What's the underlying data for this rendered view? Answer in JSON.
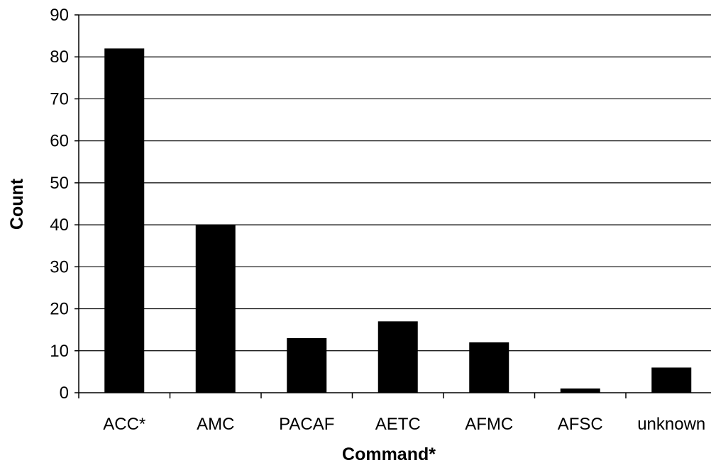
{
  "chart_data": {
    "type": "bar",
    "title": "",
    "xlabel": "Command*",
    "ylabel": "Count",
    "categories": [
      "ACC*",
      "AMC",
      "PACAF",
      "AETC",
      "AFMC",
      "AFSC",
      "unknown"
    ],
    "values": [
      82,
      40,
      13,
      17,
      12,
      1,
      6
    ],
    "ylim": [
      0,
      90
    ],
    "yticks": [
      "0",
      "10",
      "20",
      "30",
      "40",
      "50",
      "60",
      "70",
      "80",
      "90"
    ],
    "grid": true,
    "legend": "none",
    "bar_color": "#000000",
    "grid_color": "#000000"
  }
}
